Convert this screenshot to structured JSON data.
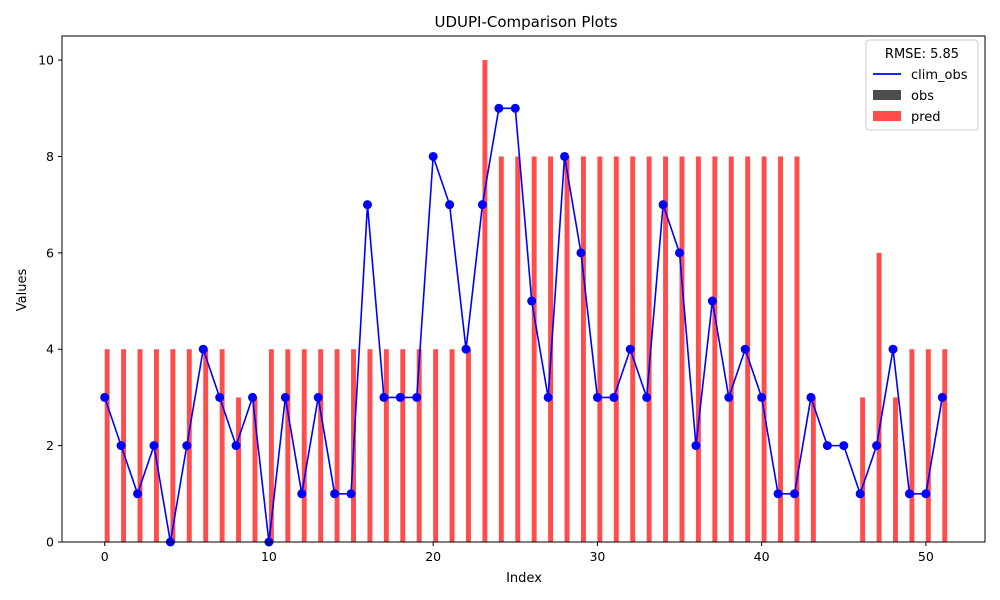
{
  "chart_data": {
    "type": "bar",
    "title": "UDUPI-Comparison Plots",
    "xlabel": "Index",
    "ylabel": "Values",
    "xlim": [
      -2.6,
      53.6
    ],
    "ylim": [
      0,
      10.5
    ],
    "xticks": [
      0,
      10,
      20,
      30,
      40,
      50
    ],
    "yticks": [
      0,
      2,
      4,
      6,
      8,
      10
    ],
    "grid": false,
    "legend": {
      "title": "RMSE: 5.85",
      "position": "top-right",
      "entries": [
        "clim_obs",
        "obs",
        "pred"
      ]
    },
    "x": [
      0,
      1,
      2,
      3,
      4,
      5,
      6,
      7,
      8,
      9,
      10,
      11,
      12,
      13,
      14,
      15,
      16,
      17,
      18,
      19,
      20,
      21,
      22,
      23,
      24,
      25,
      26,
      27,
      28,
      29,
      30,
      31,
      32,
      33,
      34,
      35,
      36,
      37,
      38,
      39,
      40,
      41,
      42,
      43,
      44,
      45,
      46,
      47,
      48,
      49,
      50,
      51
    ],
    "series": [
      {
        "name": "clim_obs",
        "kind": "line",
        "color": "#0000ff",
        "values": [
          3,
          2,
          1,
          2,
          0,
          2,
          4,
          3,
          2,
          3,
          0,
          3,
          1,
          3,
          1,
          1,
          7,
          3,
          3,
          3,
          8,
          7,
          4,
          7,
          9,
          9,
          5,
          3,
          8,
          6,
          3,
          3,
          4,
          3,
          7,
          6,
          2,
          5,
          3,
          4,
          3,
          1,
          1,
          3,
          2,
          2,
          1,
          2,
          4,
          1,
          1,
          3
        ]
      },
      {
        "name": "obs",
        "kind": "bar",
        "color": "#4d4d4d",
        "values": [
          0,
          0,
          0,
          0,
          0,
          0,
          0,
          0,
          0,
          0,
          0,
          0,
          0,
          0,
          0,
          0,
          0,
          0,
          0,
          0,
          0,
          0,
          0,
          0,
          0,
          0,
          0,
          0,
          0,
          0,
          0,
          0,
          0,
          0,
          0,
          0,
          0,
          0,
          0,
          0,
          0,
          0,
          0,
          0,
          0,
          0,
          0,
          0,
          0,
          0,
          0,
          0
        ]
      },
      {
        "name": "pred",
        "kind": "bar",
        "color": "#ff4d4d",
        "values": [
          4,
          4,
          4,
          4,
          4,
          4,
          4,
          4,
          3,
          3,
          4,
          4,
          4,
          4,
          4,
          4,
          4,
          4,
          4,
          4,
          4,
          4,
          4,
          10,
          8,
          8,
          8,
          8,
          8,
          8,
          8,
          8,
          8,
          8,
          8,
          8,
          8,
          8,
          8,
          8,
          8,
          8,
          8,
          3,
          0,
          0,
          3,
          6,
          3,
          4,
          4,
          4
        ]
      }
    ]
  }
}
